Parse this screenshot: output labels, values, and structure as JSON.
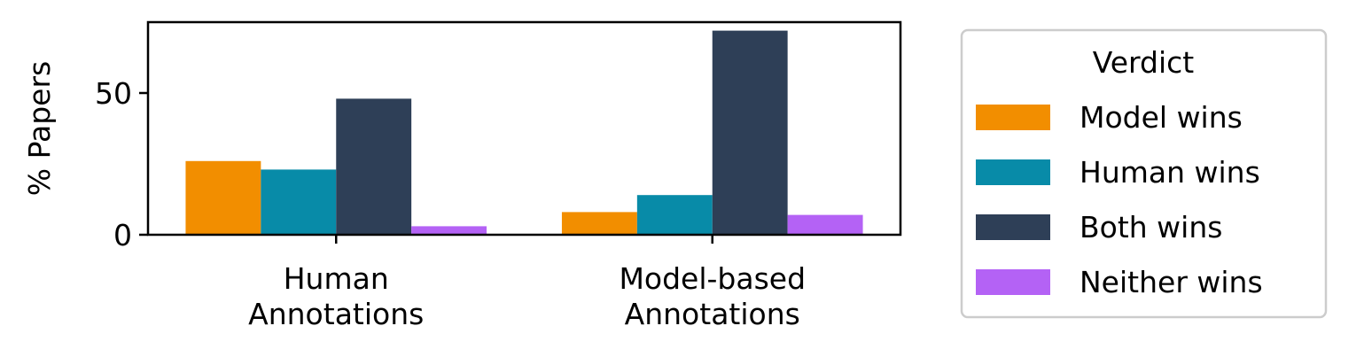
{
  "chart_data": {
    "type": "bar",
    "categories": [
      "Human\nAnnotations",
      "Model-based\nAnnotations"
    ],
    "series": [
      {
        "name": "Model wins",
        "values": [
          26,
          8
        ],
        "color": "#f28e00"
      },
      {
        "name": "Human wins",
        "values": [
          23,
          14
        ],
        "color": "#088ba8"
      },
      {
        "name": "Both wins",
        "values": [
          48,
          72
        ],
        "color": "#2e3f57"
      },
      {
        "name": "Neither wins",
        "values": [
          3,
          7
        ],
        "color": "#b462f5"
      }
    ],
    "ylabel": "% Papers",
    "ylim": [
      0,
      75
    ],
    "yticks": [
      0,
      50
    ],
    "legend": {
      "title": "Verdict",
      "placement": "outside-right"
    },
    "grid": false
  }
}
